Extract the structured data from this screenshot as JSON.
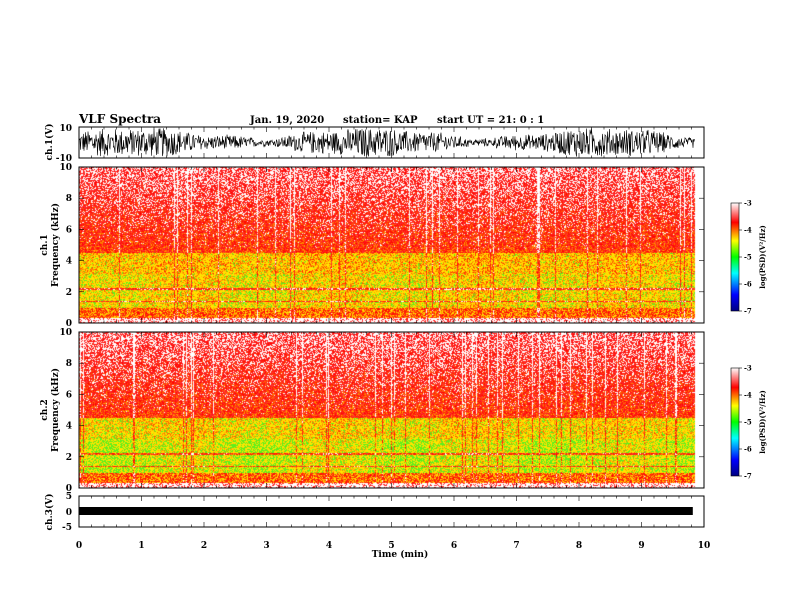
{
  "header": {
    "title": "VLF Spectra",
    "date": "Jan. 19, 2020",
    "station": "station= KAP",
    "start": "start  UT =   21: 0  : 1"
  },
  "chart_data": [
    {
      "type": "line",
      "ylabel": "ch.1(V)",
      "ylim": [
        -10,
        10
      ],
      "ytick_labels": [
        "10",
        "-10"
      ],
      "xlim": [
        0,
        10
      ],
      "description_values": "waveform oscillating across full range"
    },
    {
      "type": "heatmap",
      "ylabel_line1": "ch.1",
      "ylabel_line2": "Frequency  (kHz)",
      "ylim": [
        0,
        10
      ],
      "ytick_labels": [
        "0",
        "2",
        "4",
        "6",
        "8",
        "10"
      ],
      "xlim": [
        0,
        10
      ],
      "colorbar": {
        "label": "log(PSD)(V²/Hz)",
        "range": [
          -7,
          -3
        ],
        "tick_labels": [
          "-3",
          "-4",
          "-5",
          "-6",
          "-7"
        ]
      }
    },
    {
      "type": "heatmap",
      "ylabel_line1": "ch.2",
      "ylabel_line2": "Frequency  (kHz)",
      "ylim": [
        0,
        10
      ],
      "ytick_labels": [
        "0",
        "2",
        "4",
        "6",
        "8",
        "10"
      ],
      "xlim": [
        0,
        10
      ],
      "colorbar": {
        "label": "log(PSD)(V²/Hz)",
        "range": [
          -7,
          -3
        ],
        "tick_labels": [
          "-3",
          "-4",
          "-5",
          "-6",
          "-7"
        ]
      }
    },
    {
      "type": "line",
      "ylabel": "ch.3(V)",
      "ylim": [
        -5,
        5
      ],
      "ytick_labels": [
        "5",
        "0",
        "-5"
      ],
      "xlim": [
        0,
        10
      ],
      "xlabel": "Time  (min)",
      "xtick_labels": [
        "0",
        "1",
        "2",
        "3",
        "4",
        "5",
        "6",
        "7",
        "8",
        "9",
        "10"
      ],
      "data_end_x": 9.82
    }
  ],
  "colors": {
    "colormap": [
      "#000080",
      "#0000ff",
      "#00ffff",
      "#00ff00",
      "#ffff00",
      "#ff0000",
      "#ffffff"
    ]
  }
}
